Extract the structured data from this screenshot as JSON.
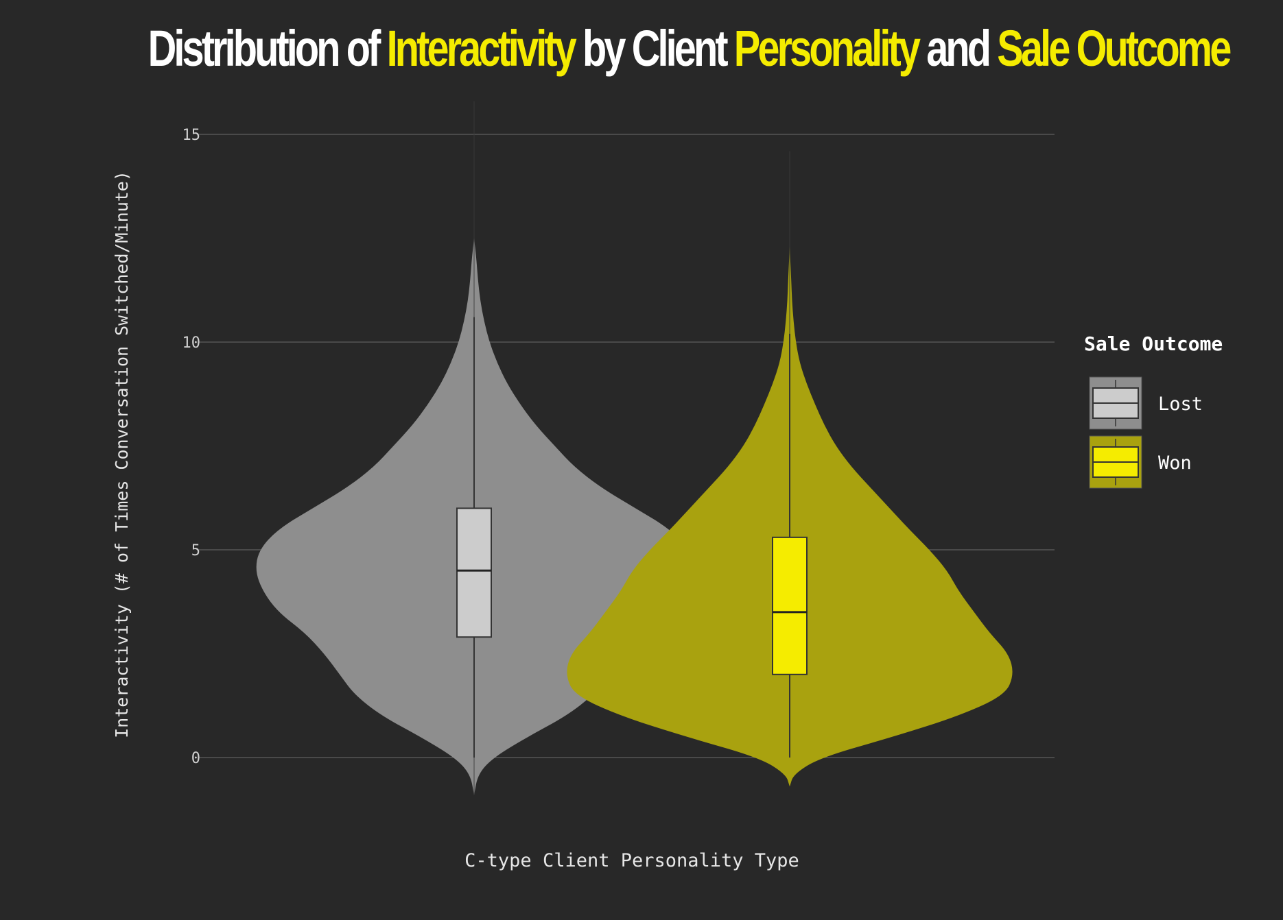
{
  "title_parts": [
    {
      "text": "Distribution of ",
      "highlight": false
    },
    {
      "text": "Interactivity",
      "highlight": true
    },
    {
      "text": " by Client ",
      "highlight": false
    },
    {
      "text": "Personality",
      "highlight": true
    },
    {
      "text": " and ",
      "highlight": false
    },
    {
      "text": "Sale Outcome",
      "highlight": true
    }
  ],
  "colors": {
    "background": "#282828",
    "highlight": "#f5ec00",
    "grid": "#555555",
    "lost_violin": "#8e8e8e",
    "lost_box": "#cccccc",
    "won_violin": "#a9a20f",
    "won_box": "#f5ec00"
  },
  "chart_data": {
    "type": "violin",
    "title": "Distribution of Interactivity by Client Personality and Sale Outcome",
    "xlabel": "C-type Client Personality Type",
    "ylabel": "Interactivity (# of Times Conversation Switched/Minute)",
    "ylim": [
      -0.9,
      15.8
    ],
    "yticks": [
      0,
      5,
      10,
      15
    ],
    "grid": "horizontal",
    "legend": {
      "title": "Sale Outcome",
      "position": "right",
      "entries": [
        "Lost",
        "Won"
      ]
    },
    "series": [
      {
        "name": "Lost",
        "box": {
          "q1": 2.9,
          "median": 4.5,
          "q3": 6.0,
          "whisker_low": 0.0,
          "whisker_high": 10.6
        },
        "line_range": [
          -0.9,
          15.8
        ],
        "density": [
          [
            -0.9,
            0.0
          ],
          [
            -0.4,
            0.05
          ],
          [
            0.0,
            0.25
          ],
          [
            0.5,
            0.7
          ],
          [
            1.0,
            1.2
          ],
          [
            1.5,
            1.55
          ],
          [
            2.0,
            1.75
          ],
          [
            2.5,
            1.95
          ],
          [
            3.0,
            2.2
          ],
          [
            3.5,
            2.55
          ],
          [
            4.0,
            2.75
          ],
          [
            4.5,
            2.85
          ],
          [
            5.0,
            2.8
          ],
          [
            5.5,
            2.55
          ],
          [
            6.0,
            2.1
          ],
          [
            6.5,
            1.65
          ],
          [
            7.0,
            1.3
          ],
          [
            7.5,
            1.05
          ],
          [
            8.0,
            0.8
          ],
          [
            8.5,
            0.6
          ],
          [
            9.0,
            0.43
          ],
          [
            9.5,
            0.3
          ],
          [
            10.0,
            0.2
          ],
          [
            10.5,
            0.13
          ],
          [
            11.0,
            0.08
          ],
          [
            11.5,
            0.05
          ],
          [
            12.0,
            0.03
          ],
          [
            12.5,
            0.0
          ]
        ]
      },
      {
        "name": "Won",
        "box": {
          "q1": 2.0,
          "median": 3.5,
          "q3": 5.3,
          "whisker_low": 0.0,
          "whisker_high": 10.2
        },
        "line_range": [
          0.0,
          14.6
        ],
        "density": [
          [
            -0.7,
            0.0
          ],
          [
            -0.4,
            0.05
          ],
          [
            0.0,
            0.4
          ],
          [
            0.5,
            1.35
          ],
          [
            1.0,
            2.2
          ],
          [
            1.5,
            2.8
          ],
          [
            2.0,
            2.92
          ],
          [
            2.5,
            2.85
          ],
          [
            3.0,
            2.6
          ],
          [
            3.5,
            2.4
          ],
          [
            4.0,
            2.2
          ],
          [
            4.5,
            2.05
          ],
          [
            5.0,
            1.82
          ],
          [
            5.5,
            1.55
          ],
          [
            6.0,
            1.3
          ],
          [
            6.5,
            1.05
          ],
          [
            7.0,
            0.8
          ],
          [
            7.5,
            0.6
          ],
          [
            8.0,
            0.45
          ],
          [
            8.5,
            0.33
          ],
          [
            9.0,
            0.22
          ],
          [
            9.5,
            0.13
          ],
          [
            10.0,
            0.08
          ],
          [
            10.5,
            0.05
          ],
          [
            11.0,
            0.03
          ],
          [
            11.5,
            0.02
          ],
          [
            12.3,
            0.0
          ]
        ]
      }
    ]
  }
}
